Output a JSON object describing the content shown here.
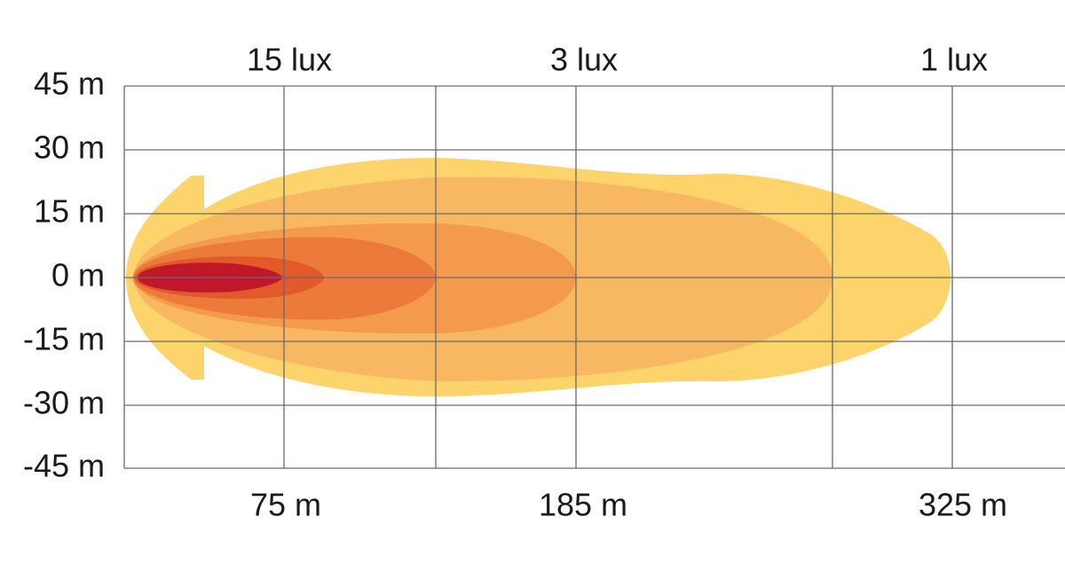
{
  "y_axis": {
    "labels": [
      "45 m",
      "30 m",
      "15 m",
      "0 m",
      "-15 m",
      "-30 m",
      "-45 m"
    ]
  },
  "top_labels": [
    "15 lux",
    "3 lux",
    "1 lux"
  ],
  "bottom_labels": [
    "75 m",
    "185 m",
    "325 m"
  ]
}
